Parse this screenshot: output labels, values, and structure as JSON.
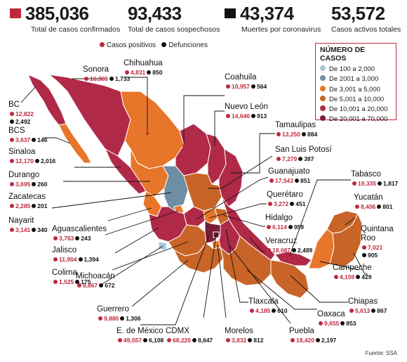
{
  "stats": [
    {
      "value": "385,036",
      "label": "Total de casos confirmados",
      "square": "#c0283f"
    },
    {
      "value": "93,433",
      "label": "Total de casos sospechosos",
      "square": ""
    },
    {
      "value": "43,374",
      "label": "Muertes por coronavirus",
      "square": "#111111"
    },
    {
      "value": "53,572",
      "label": "Casos activos totales",
      "square": ""
    }
  ],
  "legend_top": {
    "positive_label": "Casos positivos",
    "deaths_label": "Defunciones",
    "positive_color": "#c0283f",
    "deaths_color": "#111111"
  },
  "legend": {
    "title": "NÚMERO DE CASOS",
    "ranges": [
      {
        "label": "De 100 a 2,000",
        "color": "#a9c6d6"
      },
      {
        "label": "De 2001 a 3,000",
        "color": "#6e8fa3"
      },
      {
        "label": "De 3,001 a 5,000",
        "color": "#e8762a"
      },
      {
        "label": "De 5,001 a 10,000",
        "color": "#c86427"
      },
      {
        "label": "De 10,001 a 20,000",
        "color": "#b02a48"
      },
      {
        "label": "De 20,001 a 70,000",
        "color": "#7a1d36"
      }
    ]
  },
  "states": {
    "sonora": {
      "name": "Sonora",
      "positive": "16,365",
      "deaths": "1,733"
    },
    "chihuahua": {
      "name": "Chihuahua",
      "positive": "4,831",
      "deaths": "850"
    },
    "coahuila": {
      "name": "Coahuila",
      "positive": "10,957",
      "deaths": "564"
    },
    "nuevo_leon": {
      "name": "Nuevo León",
      "positive": "14,646",
      "deaths": "913"
    },
    "tamaulipas": {
      "name": "Tamaulipas",
      "positive": "13,250",
      "deaths": "884"
    },
    "slp": {
      "name": "San Luis Potosí",
      "positive": "7,279",
      "deaths": "387"
    },
    "guanajuato": {
      "name": "Guanajuato",
      "positive": "17,543",
      "deaths": "851"
    },
    "queretaro": {
      "name": "Querétaro",
      "positive": "3,272",
      "deaths": "451"
    },
    "hidalgo": {
      "name": "Hidalgo",
      "positive": "6,114",
      "deaths": "959"
    },
    "veracruz": {
      "name": "Veracruz",
      "positive": "18,687",
      "deaths": "2,489"
    },
    "tabasco": {
      "name": "Tabasco",
      "positive": "19,335",
      "deaths": "1,817"
    },
    "yucatan": {
      "name": "Yucatán",
      "positive": "8,406",
      "deaths": "801"
    },
    "quintana_roo": {
      "name": "Quintana Roo",
      "positive": "7,021",
      "deaths": "905"
    },
    "campeche": {
      "name": "Campeche",
      "positive": "4,159",
      "deaths": "429"
    },
    "chiapas": {
      "name": "Chiapas",
      "positive": "5,613",
      "deaths": "867"
    },
    "oaxaca": {
      "name": "Oaxaca",
      "positive": "9,655",
      "deaths": "853"
    },
    "puebla": {
      "name": "Puebla",
      "positive": "18,420",
      "deaths": "2,197"
    },
    "morelos": {
      "name": "Morelos",
      "positive": "3,832",
      "deaths": "812"
    },
    "cdmx": {
      "name": "CDMX",
      "positive": "68,220",
      "deaths": "8,647"
    },
    "edomex": {
      "name": "E. de México",
      "positive": "49,557",
      "deaths": "6,108"
    },
    "tlaxcala": {
      "name": "Tlaxcala",
      "positive": "4,185",
      "deaths": "610"
    },
    "guerrero": {
      "name": "Guerrero",
      "positive": "9,880",
      "deaths": "1,306"
    },
    "michoacan": {
      "name": "Michoacán",
      "positive": "8,867",
      "deaths": "672"
    },
    "colima": {
      "name": "Colima",
      "positive": "1,525",
      "deaths": "175"
    },
    "jalisco": {
      "name": "Jalisco",
      "positive": "11,904",
      "deaths": "1,394"
    },
    "aguascalientes": {
      "name": "Aguascalientes",
      "positive": "3,763",
      "deaths": "243"
    },
    "nayarit": {
      "name": "Nayarit",
      "positive": "3,141",
      "deaths": "340"
    },
    "zacatecas": {
      "name": "Zacatecas",
      "positive": "2,285",
      "deaths": "201"
    },
    "durango": {
      "name": "Durango",
      "positive": "3,695",
      "deaths": "260"
    },
    "sinaloa": {
      "name": "Sinaloa",
      "positive": "12,170",
      "deaths": "2,016"
    },
    "bcs": {
      "name": "BCS",
      "positive": "3,637",
      "deaths": "146"
    },
    "bc": {
      "name": "BC",
      "positive": "12,822",
      "deaths": "2,492"
    }
  },
  "source": "Fuente: SSA"
}
